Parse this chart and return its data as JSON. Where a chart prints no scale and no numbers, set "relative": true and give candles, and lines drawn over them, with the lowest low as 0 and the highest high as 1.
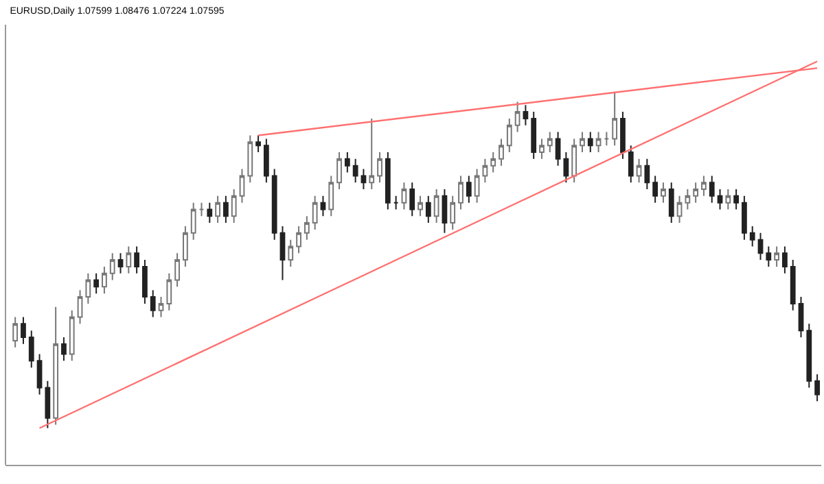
{
  "chart_data": {
    "type": "candlestick",
    "title": "EURUSD,Daily 1.07599 1.08476 1.07224 1.07595",
    "relative": true,
    "categories": [
      null,
      null,
      null,
      null,
      null,
      null,
      null,
      null,
      null,
      null,
      null,
      null,
      null,
      null,
      null,
      null,
      null,
      null,
      null,
      null,
      null,
      null,
      null,
      null,
      null,
      null,
      null,
      null,
      null,
      null,
      null,
      null,
      null,
      null,
      null,
      null,
      null,
      null,
      null,
      null,
      null,
      null,
      null,
      null,
      null,
      null,
      null,
      null,
      null,
      null,
      null,
      null,
      null,
      null,
      null,
      null,
      null,
      null,
      null,
      null,
      null,
      null,
      null,
      null,
      null,
      null,
      null,
      null,
      null,
      null,
      null,
      null,
      null,
      null,
      null,
      null,
      null,
      null,
      null,
      null,
      null,
      null,
      null,
      null,
      null,
      null,
      null,
      null,
      null,
      null,
      null,
      null,
      null,
      null,
      null,
      null,
      null,
      null,
      null,
      null
    ],
    "ohlc": [
      [
        0.26,
        0.33,
        0.24,
        0.31
      ],
      [
        0.31,
        0.33,
        0.25,
        0.27
      ],
      [
        0.27,
        0.29,
        0.18,
        0.2
      ],
      [
        0.2,
        0.22,
        0.1,
        0.12
      ],
      [
        0.12,
        0.14,
        0,
        0.03
      ],
      [
        0.03,
        0.36,
        0.01,
        0.25
      ],
      [
        0.25,
        0.27,
        0.2,
        0.22
      ],
      [
        0.22,
        0.35,
        0.2,
        0.33
      ],
      [
        0.33,
        0.41,
        0.31,
        0.39
      ],
      [
        0.39,
        0.46,
        0.37,
        0.44
      ],
      [
        0.44,
        0.46,
        0.4,
        0.42
      ],
      [
        0.42,
        0.48,
        0.4,
        0.46
      ],
      [
        0.46,
        0.52,
        0.44,
        0.5
      ],
      [
        0.5,
        0.52,
        0.46,
        0.48
      ],
      [
        0.48,
        0.54,
        0.46,
        0.52
      ],
      [
        0.52,
        0.54,
        0.46,
        0.48
      ],
      [
        0.48,
        0.5,
        0.37,
        0.39
      ],
      [
        0.39,
        0.41,
        0.33,
        0.35
      ],
      [
        0.35,
        0.39,
        0.33,
        0.37
      ],
      [
        0.37,
        0.46,
        0.35,
        0.44
      ],
      [
        0.44,
        0.52,
        0.42,
        0.5
      ],
      [
        0.5,
        0.6,
        0.48,
        0.58
      ],
      [
        0.58,
        0.67,
        0.56,
        0.65
      ],
      [
        0.65,
        0.67,
        0.63,
        0.65
      ],
      [
        0.65,
        0.67,
        0.61,
        0.63
      ],
      [
        0.63,
        0.69,
        0.61,
        0.67
      ],
      [
        0.67,
        0.69,
        0.61,
        0.63
      ],
      [
        0.63,
        0.71,
        0.61,
        0.69
      ],
      [
        0.69,
        0.77,
        0.67,
        0.75
      ],
      [
        0.75,
        0.87,
        0.73,
        0.85
      ],
      [
        0.85,
        0.87,
        0.82,
        0.84
      ],
      [
        0.84,
        0.86,
        0.73,
        0.75
      ],
      [
        0.75,
        0.77,
        0.56,
        0.58
      ],
      [
        0.58,
        0.6,
        0.44,
        0.5
      ],
      [
        0.5,
        0.56,
        0.48,
        0.54
      ],
      [
        0.54,
        0.6,
        0.52,
        0.58
      ],
      [
        0.58,
        0.63,
        0.56,
        0.61
      ],
      [
        0.61,
        0.69,
        0.59,
        0.67
      ],
      [
        0.67,
        0.69,
        0.63,
        0.65
      ],
      [
        0.65,
        0.75,
        0.63,
        0.73
      ],
      [
        0.73,
        0.82,
        0.71,
        0.8
      ],
      [
        0.8,
        0.82,
        0.76,
        0.78
      ],
      [
        0.78,
        0.8,
        0.73,
        0.75
      ],
      [
        0.75,
        0.77,
        0.71,
        0.73
      ],
      [
        0.73,
        0.92,
        0.71,
        0.75
      ],
      [
        0.75,
        0.82,
        0.73,
        0.8
      ],
      [
        0.8,
        0.82,
        0.65,
        0.67
      ],
      [
        0.67,
        0.69,
        0.65,
        0.67
      ],
      [
        0.67,
        0.73,
        0.65,
        0.71
      ],
      [
        0.71,
        0.73,
        0.63,
        0.65
      ],
      [
        0.65,
        0.69,
        0.63,
        0.67
      ],
      [
        0.67,
        0.69,
        0.61,
        0.63
      ],
      [
        0.63,
        0.71,
        0.61,
        0.69
      ],
      [
        0.69,
        0.71,
        0.58,
        0.61
      ],
      [
        0.61,
        0.69,
        0.59,
        0.67
      ],
      [
        0.67,
        0.75,
        0.65,
        0.73
      ],
      [
        0.73,
        0.75,
        0.67,
        0.69
      ],
      [
        0.69,
        0.77,
        0.67,
        0.75
      ],
      [
        0.75,
        0.8,
        0.73,
        0.78
      ],
      [
        0.78,
        0.82,
        0.76,
        0.8
      ],
      [
        0.8,
        0.86,
        0.78,
        0.84
      ],
      [
        0.84,
        0.92,
        0.82,
        0.9
      ],
      [
        0.9,
        0.97,
        0.88,
        0.94
      ],
      [
        0.94,
        0.96,
        0.9,
        0.92
      ],
      [
        0.92,
        0.94,
        0.8,
        0.82
      ],
      [
        0.82,
        0.86,
        0.8,
        0.84
      ],
      [
        0.84,
        0.88,
        0.82,
        0.86
      ],
      [
        0.86,
        0.88,
        0.78,
        0.8
      ],
      [
        0.8,
        0.82,
        0.73,
        0.75
      ],
      [
        0.75,
        0.86,
        0.73,
        0.84
      ],
      [
        0.84,
        0.88,
        0.82,
        0.86
      ],
      [
        0.86,
        0.88,
        0.82,
        0.84
      ],
      [
        0.84,
        0.88,
        0.82,
        0.86
      ],
      [
        0.86,
        0.88,
        0.84,
        0.86
      ],
      [
        0.86,
        1,
        0.84,
        0.92
      ],
      [
        0.92,
        0.94,
        0.8,
        0.82
      ],
      [
        0.82,
        0.84,
        0.73,
        0.75
      ],
      [
        0.75,
        0.8,
        0.73,
        0.78
      ],
      [
        0.78,
        0.8,
        0.71,
        0.73
      ],
      [
        0.73,
        0.75,
        0.67,
        0.69
      ],
      [
        0.69,
        0.73,
        0.67,
        0.71
      ],
      [
        0.71,
        0.73,
        0.61,
        0.63
      ],
      [
        0.63,
        0.69,
        0.61,
        0.67
      ],
      [
        0.67,
        0.71,
        0.65,
        0.69
      ],
      [
        0.69,
        0.73,
        0.67,
        0.71
      ],
      [
        0.71,
        0.75,
        0.69,
        0.73
      ],
      [
        0.73,
        0.75,
        0.67,
        0.69
      ],
      [
        0.69,
        0.71,
        0.65,
        0.67
      ],
      [
        0.67,
        0.71,
        0.65,
        0.69
      ],
      [
        0.69,
        0.71,
        0.65,
        0.67
      ],
      [
        0.67,
        0.69,
        0.56,
        0.58
      ],
      [
        0.58,
        0.6,
        0.54,
        0.56
      ],
      [
        0.56,
        0.58,
        0.5,
        0.52
      ],
      [
        0.52,
        0.54,
        0.48,
        0.5
      ],
      [
        0.5,
        0.54,
        0.48,
        0.52
      ],
      [
        0.52,
        0.54,
        0.46,
        0.48
      ],
      [
        0.48,
        0.5,
        0.35,
        0.37
      ],
      [
        0.37,
        0.39,
        0.27,
        0.29
      ],
      [
        0.29,
        0.31,
        0.12,
        0.14
      ],
      [
        0.14,
        0.16,
        0.08,
        0.1
      ]
    ],
    "series": [
      {
        "type": "line",
        "values": [
          null,
          null,
          null,
          0,
          null,
          null,
          null,
          null,
          null,
          null,
          null,
          null,
          null,
          null,
          null,
          null,
          null,
          null,
          null,
          null,
          null,
          null,
          null,
          null,
          null,
          null,
          null,
          null,
          null,
          null,
          null,
          null,
          null,
          null,
          null,
          null,
          null,
          null,
          null,
          null,
          null,
          null,
          null,
          null,
          null,
          null,
          null,
          null,
          null,
          null,
          null,
          null,
          null,
          null,
          null,
          null,
          null,
          null,
          null,
          null,
          null,
          null,
          null,
          null,
          null,
          null,
          null,
          null,
          null,
          null,
          null,
          null,
          null,
          null,
          null,
          null,
          null,
          null,
          null,
          null,
          null,
          null,
          null,
          null,
          null,
          null,
          null,
          null,
          null,
          null,
          null,
          null,
          null,
          null,
          null,
          null,
          null,
          null,
          null,
          1.09
        ],
        "color": "#ff7070"
      },
      {
        "type": "line",
        "values": [
          null,
          null,
          null,
          null,
          null,
          null,
          null,
          null,
          null,
          null,
          null,
          null,
          null,
          null,
          null,
          null,
          null,
          null,
          null,
          null,
          null,
          null,
          null,
          null,
          null,
          null,
          null,
          null,
          null,
          null,
          0.87,
          null,
          null,
          null,
          null,
          null,
          null,
          null,
          null,
          null,
          null,
          null,
          null,
          null,
          null,
          null,
          null,
          null,
          null,
          null,
          null,
          null,
          null,
          null,
          null,
          null,
          null,
          null,
          null,
          null,
          null,
          null,
          null,
          null,
          null,
          null,
          null,
          null,
          null,
          null,
          null,
          null,
          null,
          null,
          null,
          null,
          null,
          null,
          null,
          null,
          null,
          null,
          null,
          null,
          null,
          null,
          null,
          null,
          null,
          null,
          null,
          null,
          null,
          null,
          null,
          null,
          null,
          null,
          null,
          1.07
        ],
        "color": "#ff7070"
      }
    ]
  }
}
